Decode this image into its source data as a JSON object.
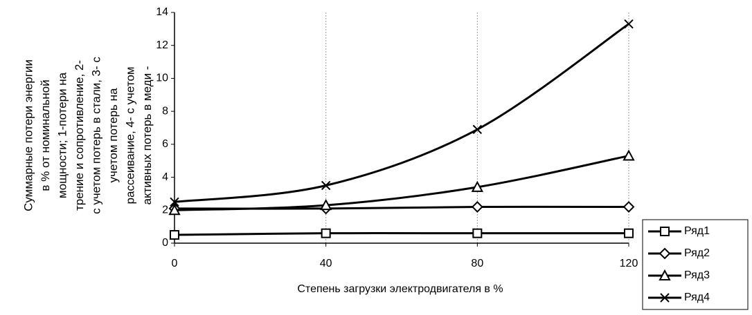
{
  "chart_data": {
    "type": "line",
    "y_label_lines": [
      "Суммарные потери энергии",
      "в % от номинальной",
      "мощности; 1-потери на",
      "трение и сопротивление,  2-",
      "с учетом потерь в стали, 3- с",
      "учетом потерь на",
      "рассеивание, 4- с учетом",
      "активных потерь в меди -"
    ],
    "x_label": "Степень загрузки электродвигателя в %",
    "x": [
      0,
      40,
      80,
      120
    ],
    "xlim": [
      0,
      120
    ],
    "xticks": [
      0,
      40,
      80,
      120
    ],
    "ylim": [
      0,
      14
    ],
    "yticks": [
      0,
      2,
      4,
      6,
      8,
      10,
      12,
      14
    ],
    "grid": "x",
    "smooth": true,
    "legend": "lower right",
    "series": [
      {
        "name": "Ряд1",
        "color": "#000000",
        "marker": "square",
        "values": [
          0.5,
          0.6,
          0.6,
          0.6
        ]
      },
      {
        "name": "Ряд2",
        "color": "#000000",
        "marker": "diamond",
        "values": [
          2.1,
          2.1,
          2.2,
          2.2
        ]
      },
      {
        "name": "Ряд3",
        "color": "#000000",
        "marker": "triangle",
        "values": [
          2.0,
          2.3,
          3.4,
          5.3
        ]
      },
      {
        "name": "Ряд4",
        "color": "#000000",
        "marker": "x",
        "values": [
          2.5,
          3.5,
          6.9,
          13.3
        ]
      }
    ]
  }
}
